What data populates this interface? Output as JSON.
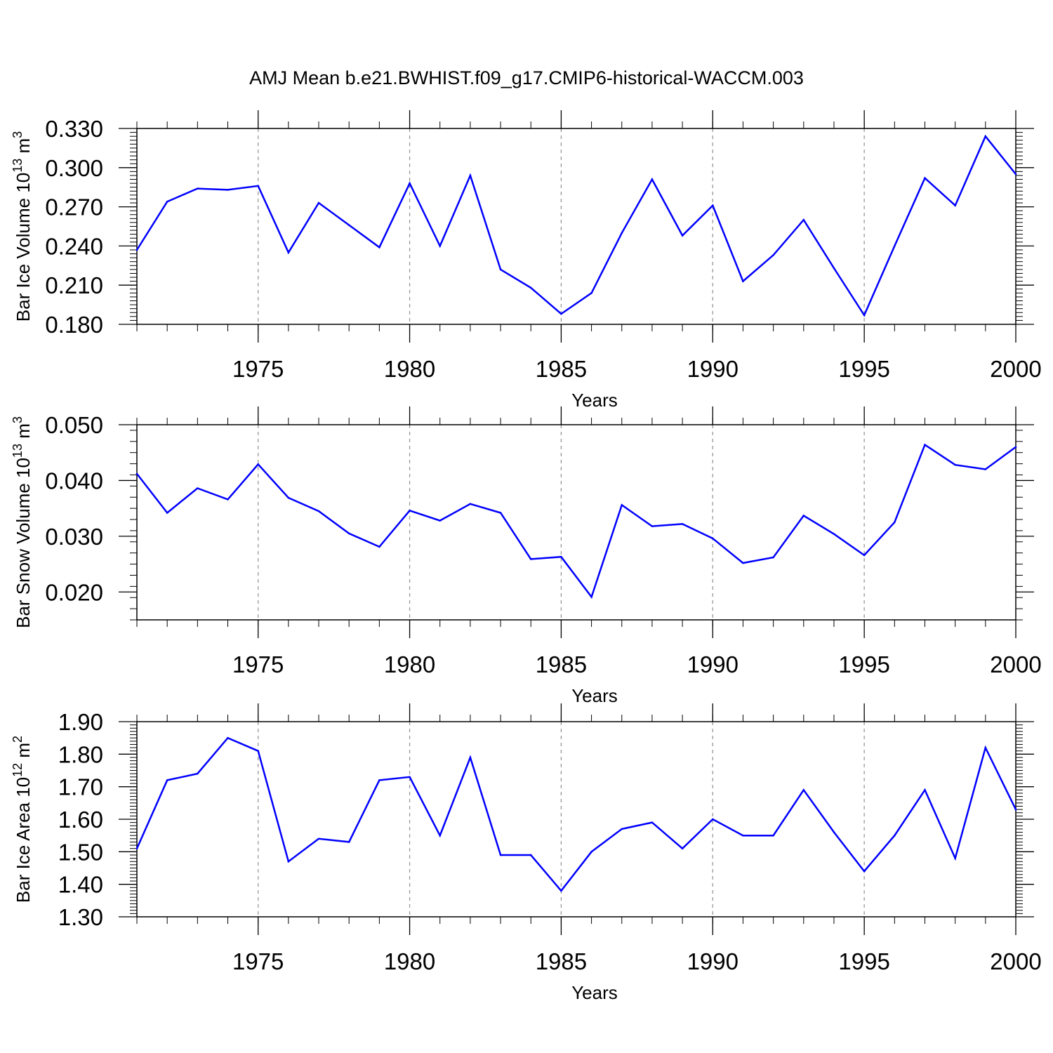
{
  "title": "AMJ Mean b.e21.BWHIST.f09_g17.CMIP6-historical-WACCM.003",
  "colors": {
    "line": "#0000ff",
    "axis": "#000000",
    "grid": "#999999"
  },
  "chart_data": [
    {
      "type": "line",
      "xlabel": "Years",
      "ylabel": {
        "prefix": "Bar Ice Volume 10",
        "exponent": "13",
        "unit": " m",
        "unit_exponent": "3"
      },
      "xlim": [
        1971,
        2000
      ],
      "ylim": [
        0.18,
        0.33
      ],
      "xticks": [
        "1975",
        "1980",
        "1985",
        "1990",
        "1995",
        "2000"
      ],
      "yticks": [
        "0.180",
        "0.210",
        "0.240",
        "0.270",
        "0.300",
        "0.330"
      ],
      "x": [
        1971,
        1972,
        1973,
        1974,
        1975,
        1976,
        1977,
        1978,
        1979,
        1980,
        1981,
        1982,
        1983,
        1984,
        1985,
        1986,
        1987,
        1988,
        1989,
        1990,
        1991,
        1992,
        1993,
        1994,
        1995,
        1996,
        1997,
        1998,
        1999,
        2000
      ],
      "series": [
        {
          "name": "Bar Ice Volume",
          "values": [
            0.237,
            0.274,
            0.284,
            0.283,
            0.286,
            0.235,
            0.273,
            0.256,
            0.239,
            0.288,
            0.24,
            0.294,
            0.222,
            0.208,
            0.188,
            0.204,
            0.25,
            0.291,
            0.248,
            0.271,
            0.213,
            0.233,
            0.26,
            0.223,
            0.187,
            0.24,
            0.292,
            0.271,
            0.324,
            0.295
          ]
        }
      ]
    },
    {
      "type": "line",
      "xlabel": "Years",
      "ylabel": {
        "prefix": "Bar Snow Volume 10",
        "exponent": "13",
        "unit": " m",
        "unit_exponent": "3"
      },
      "xlim": [
        1971,
        2000
      ],
      "ylim": [
        0.015,
        0.05
      ],
      "xticks": [
        "1975",
        "1980",
        "1985",
        "1990",
        "1995",
        "2000"
      ],
      "yticks": [
        "0.020",
        "0.030",
        "0.040",
        "0.050"
      ],
      "x": [
        1971,
        1972,
        1973,
        1974,
        1975,
        1976,
        1977,
        1978,
        1979,
        1980,
        1981,
        1982,
        1983,
        1984,
        1985,
        1986,
        1987,
        1988,
        1989,
        1990,
        1991,
        1992,
        1993,
        1994,
        1995,
        1996,
        1997,
        1998,
        1999,
        2000
      ],
      "series": [
        {
          "name": "Bar Snow Volume",
          "values": [
            0.0412,
            0.0342,
            0.0386,
            0.0366,
            0.0429,
            0.0369,
            0.0345,
            0.0305,
            0.0281,
            0.0346,
            0.0328,
            0.0358,
            0.0342,
            0.0259,
            0.0263,
            0.0191,
            0.0356,
            0.0318,
            0.0322,
            0.0296,
            0.0252,
            0.0262,
            0.0337,
            0.0304,
            0.0266,
            0.0325,
            0.0464,
            0.0428,
            0.042,
            0.046
          ]
        }
      ]
    },
    {
      "type": "line",
      "xlabel": "Years",
      "ylabel": {
        "prefix": "Bar Ice Area 10",
        "exponent": "12",
        "unit": " m",
        "unit_exponent": "2"
      },
      "xlim": [
        1971,
        2000
      ],
      "ylim": [
        1.3,
        1.9
      ],
      "xticks": [
        "1975",
        "1980",
        "1985",
        "1990",
        "1995",
        "2000"
      ],
      "yticks": [
        "1.30",
        "1.40",
        "1.50",
        "1.60",
        "1.70",
        "1.80",
        "1.90"
      ],
      "x": [
        1971,
        1972,
        1973,
        1974,
        1975,
        1976,
        1977,
        1978,
        1979,
        1980,
        1981,
        1982,
        1983,
        1984,
        1985,
        1986,
        1987,
        1988,
        1989,
        1990,
        1991,
        1992,
        1993,
        1994,
        1995,
        1996,
        1997,
        1998,
        1999,
        2000
      ],
      "series": [
        {
          "name": "Bar Ice Area",
          "values": [
            1.51,
            1.72,
            1.74,
            1.85,
            1.81,
            1.47,
            1.54,
            1.53,
            1.72,
            1.73,
            1.55,
            1.79,
            1.49,
            1.49,
            1.38,
            1.5,
            1.57,
            1.59,
            1.51,
            1.6,
            1.55,
            1.55,
            1.69,
            1.56,
            1.44,
            1.55,
            1.69,
            1.48,
            1.82,
            1.63
          ]
        }
      ]
    }
  ]
}
